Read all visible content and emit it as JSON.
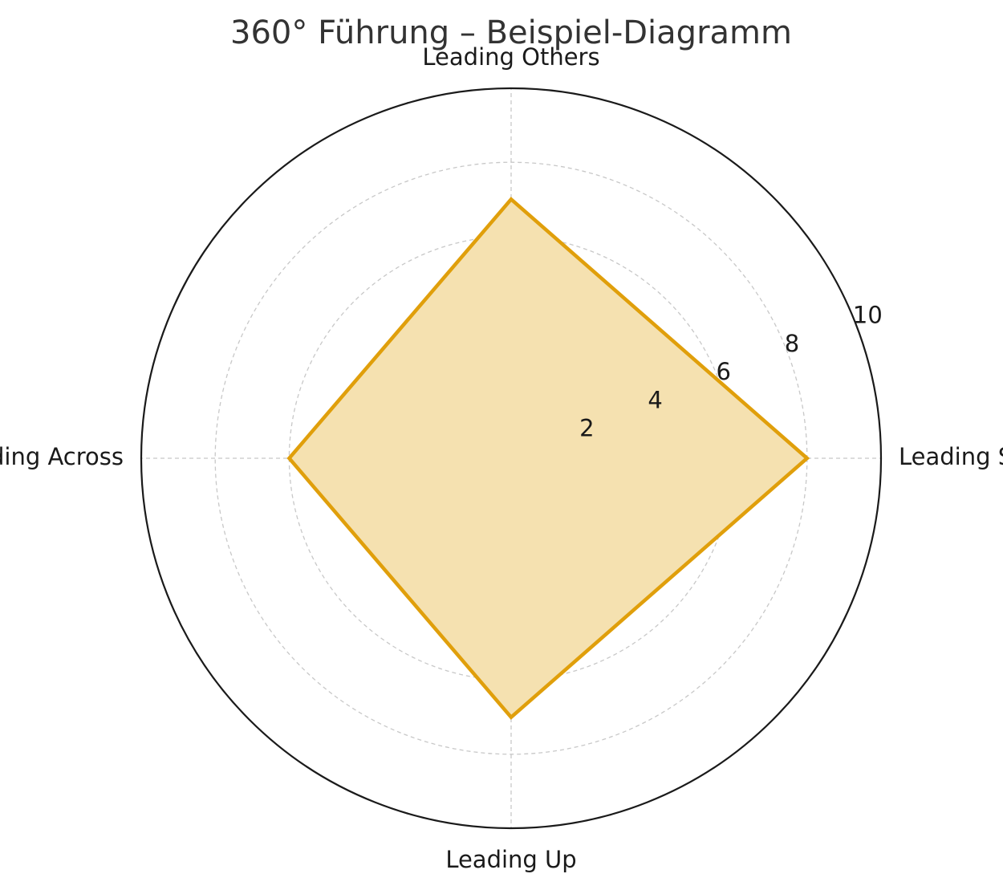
{
  "chart_data": {
    "type": "radar",
    "title": "360° Führung – Beispiel-Diagramm",
    "categories": [
      "Leading Self",
      "Leading Others",
      "Leading Across",
      "Leading Up"
    ],
    "series": [
      {
        "values": [
          8,
          7,
          6,
          7
        ]
      }
    ],
    "rlim": [
      0,
      10
    ],
    "r_ticks": [
      2,
      4,
      6,
      8,
      10
    ],
    "grid": true,
    "colors": {
      "line": "#e09f0b",
      "fill": "#f5e1b0",
      "outer_ring": "#1a1a1a",
      "grid": "#c8c8c8",
      "text": "#1a1a1a",
      "title": "#333333"
    }
  }
}
